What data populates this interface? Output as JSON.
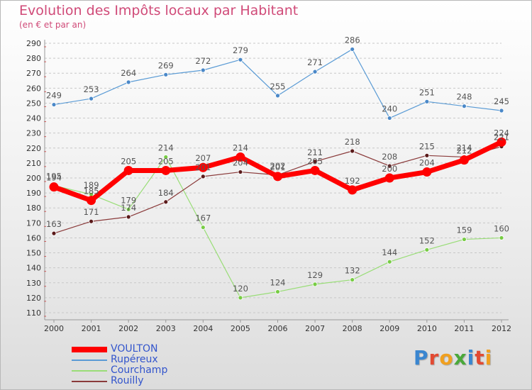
{
  "title": "Evolution des Impôts locaux par Habitant",
  "subtitle": "(en € et par an)",
  "logo": {
    "text": "Proxiti",
    "letters": [
      {
        "ch": "P",
        "color": "#3a86d0"
      },
      {
        "ch": "r",
        "color": "#e24a32"
      },
      {
        "ch": "o",
        "color": "#f0a020"
      },
      {
        "ch": "x",
        "color": "#4aa83a"
      },
      {
        "ch": "i",
        "color": "#3a86d0"
      },
      {
        "ch": "t",
        "color": "#e24a32"
      },
      {
        "ch": "i",
        "color": "#f0a020"
      }
    ]
  },
  "chart_data": {
    "type": "line",
    "x": [
      2000,
      2001,
      2002,
      2003,
      2004,
      2005,
      2006,
      2007,
      2008,
      2009,
      2010,
      2011,
      2012
    ],
    "ylim": [
      110,
      290
    ],
    "ytick_step": 10,
    "grid": "horizontal dashed",
    "legend_position": "bottom-left",
    "series": [
      {
        "name": "VOULTON",
        "color": "#ff0000",
        "point_color": "#ff0000",
        "width": "thick",
        "values": [
          194,
          185,
          205,
          205,
          207,
          214,
          201,
          205,
          192,
          200,
          204,
          212,
          224
        ]
      },
      {
        "name": "Rupéreux",
        "color": "#5a9bd5",
        "point_color": "#4a88c8",
        "width": "thin",
        "values": [
          249,
          253,
          264,
          269,
          272,
          279,
          255,
          271,
          286,
          240,
          251,
          248,
          245
        ]
      },
      {
        "name": "Courchamp",
        "color": "#99dd77",
        "point_color": "#77cc44",
        "width": "thin",
        "values": [
          195,
          189,
          179,
          214,
          167,
          120,
          124,
          129,
          132,
          144,
          152,
          159,
          160
        ]
      },
      {
        "name": "Rouilly",
        "color": "#8a3a3a",
        "point_color": "#5a1a1a",
        "width": "thin",
        "values": [
          163,
          171,
          174,
          184,
          201,
          204,
          202,
          211,
          218,
          208,
          215,
          214,
          221
        ]
      }
    ]
  }
}
